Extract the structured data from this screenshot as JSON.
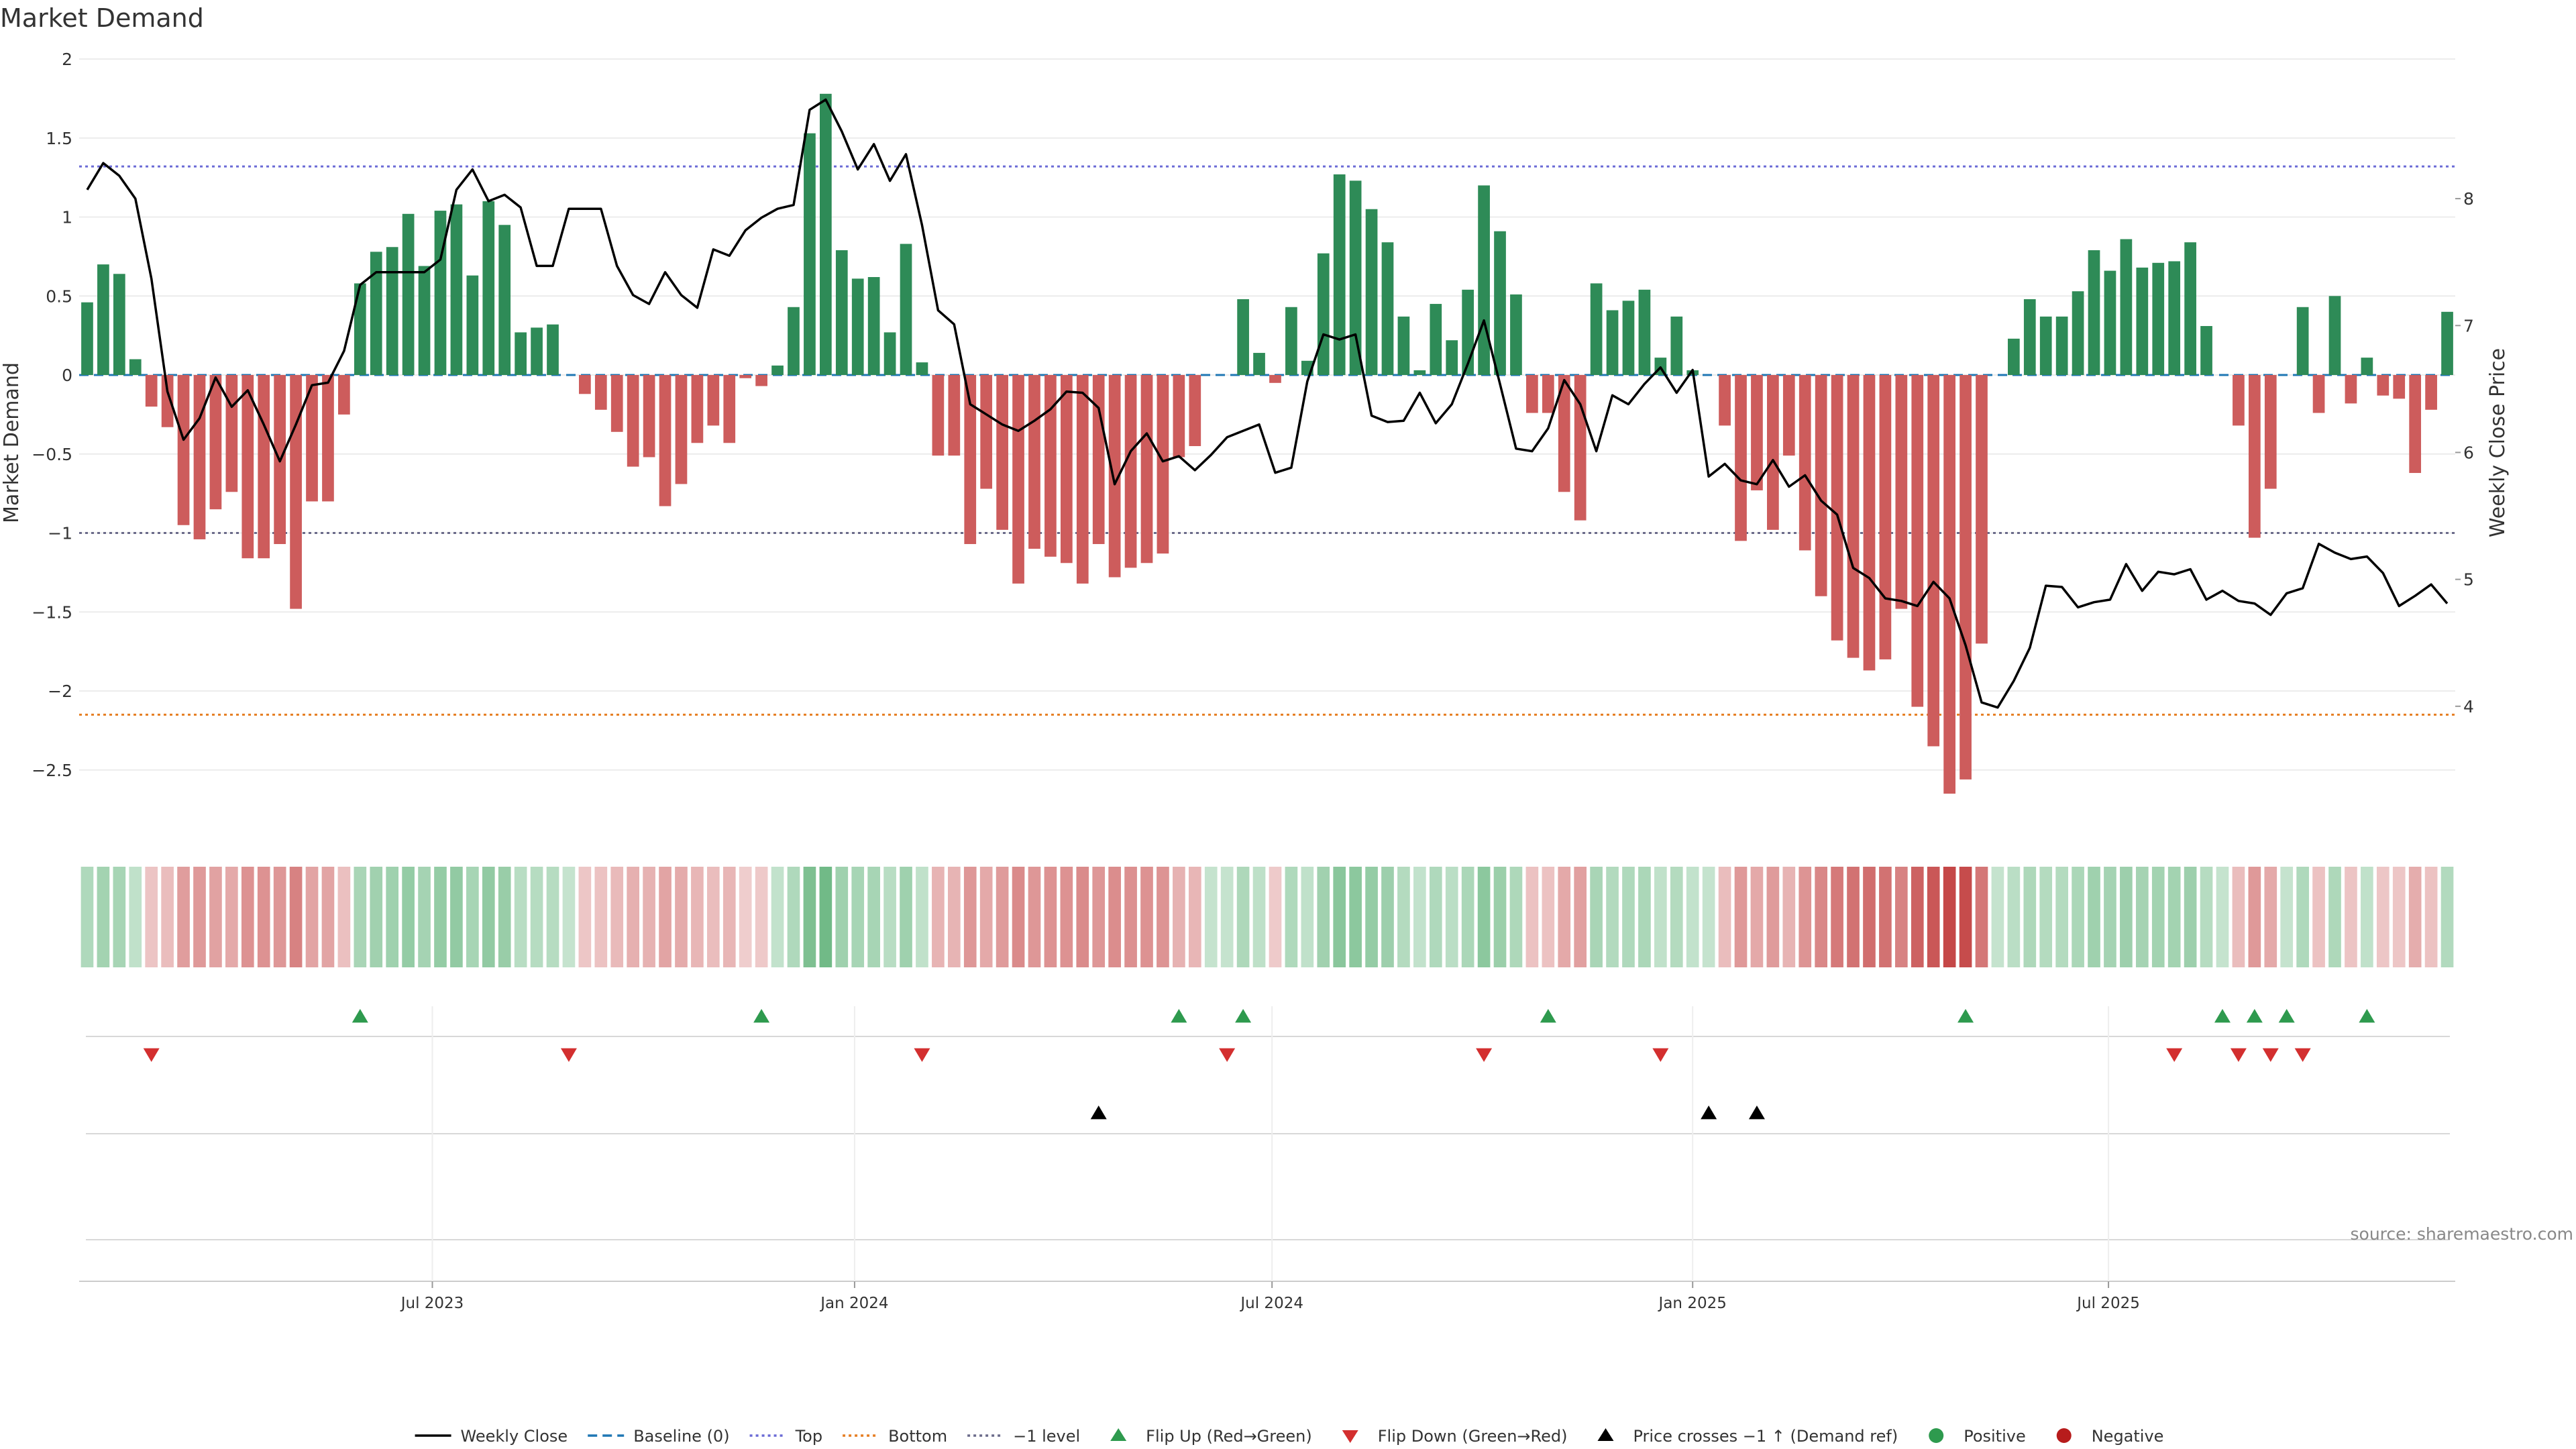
{
  "chart_data": {
    "type": "bar",
    "title": "Market Demand",
    "ylabel_left": "Market Demand",
    "ylabel_right": "Weekly Close Price",
    "source": "source: sharemaestro.com",
    "y_left_ticks": [
      2,
      1.5,
      1,
      0.5,
      0,
      -0.5,
      -1,
      -1.5,
      -2,
      -2.5
    ],
    "y_left_tick_labels": [
      "2",
      "1.5",
      "1",
      "0.5",
      "0",
      "−0.5",
      "−1",
      "−1.5",
      "−2",
      "−2.5"
    ],
    "y_left_range": [
      -2.9,
      2.0
    ],
    "y_right_ticks": [
      8,
      7,
      6,
      5,
      4
    ],
    "y_right_tick_labels": [
      "8",
      "7",
      "6",
      "5",
      "4"
    ],
    "y_right_range": [
      3.0,
      9.1
    ],
    "reference_lines": {
      "baseline": 0,
      "top": 1.32,
      "bottom": -2.15,
      "minus_one": -1
    },
    "x_ticks": [
      "Jul 2023",
      "Jan 2024",
      "Jul 2024",
      "Jan 2025",
      "Jul 2025"
    ],
    "x_tick_weeks": [
      21.5,
      47.8,
      73.8,
      100,
      125.9
    ],
    "demand": [
      0.46,
      0.7,
      0.64,
      0.1,
      -0.2,
      -0.33,
      -0.95,
      -1.04,
      -0.85,
      -0.74,
      -1.16,
      -1.16,
      -1.07,
      -1.48,
      -0.8,
      -0.8,
      -0.25,
      0.58,
      0.78,
      0.81,
      1.02,
      0.69,
      1.04,
      1.08,
      0.63,
      1.1,
      0.95,
      0.27,
      0.3,
      0.32,
      0,
      -0.12,
      -0.22,
      -0.36,
      -0.58,
      -0.52,
      -0.83,
      -0.69,
      -0.43,
      -0.32,
      -0.43,
      -0.02,
      -0.07,
      0.06,
      0.43,
      1.53,
      1.78,
      0.79,
      0.61,
      0.62,
      0.27,
      0.83,
      0.08,
      -0.51,
      -0.51,
      -1.07,
      -0.72,
      -0.98,
      -1.32,
      -1.1,
      -1.15,
      -1.19,
      -1.32,
      -1.07,
      -1.28,
      -1.22,
      -1.19,
      -1.13,
      -0.52,
      -0.45,
      0,
      0,
      0.48,
      0.14,
      -0.05,
      0.43,
      0.09,
      0.77,
      1.27,
      1.23,
      1.05,
      0.84,
      0.37,
      0.03,
      0.45,
      0.22,
      0.54,
      1.2,
      0.91,
      0.51,
      -0.24,
      -0.24,
      -0.74,
      -0.92,
      0.58,
      0.41,
      0.47,
      0.54,
      0.11,
      0.37,
      0.03,
      0,
      -0.32,
      -1.05,
      -0.73,
      -0.98,
      -0.51,
      -1.11,
      -1.4,
      -1.68,
      -1.79,
      -1.87,
      -1.8,
      -1.48,
      -2.1,
      -2.35,
      -2.65,
      -2.56,
      -1.7,
      0,
      0.23,
      0.48,
      0.37,
      0.37,
      0.53,
      0.79,
      0.66,
      0.86,
      0.68,
      0.71,
      0.72,
      0.84,
      0.31,
      0,
      -0.32,
      -1.03,
      -0.72,
      0,
      0.43,
      -0.24,
      0.5,
      -0.18,
      0.11,
      -0.13,
      -0.15,
      -0.62,
      -0.22,
      0.4
    ],
    "weekly_close": [
      8.07,
      8.28,
      8.18,
      8.0,
      7.37,
      6.48,
      6.1,
      6.27,
      6.59,
      6.36,
      6.49,
      6.22,
      5.93,
      6.22,
      6.53,
      6.55,
      6.8,
      7.32,
      7.42,
      7.42,
      7.42,
      7.42,
      7.52,
      8.07,
      8.23,
      7.98,
      8.03,
      7.93,
      7.47,
      7.47,
      7.92,
      7.92,
      7.92,
      7.47,
      7.24,
      7.17,
      7.42,
      7.24,
      7.14,
      7.6,
      7.55,
      7.75,
      7.85,
      7.92,
      7.95,
      8.7,
      8.78,
      8.53,
      8.23,
      8.43,
      8.14,
      8.35,
      7.79,
      7.12,
      7.01,
      6.38,
      6.3,
      6.22,
      6.17,
      6.25,
      6.34,
      6.48,
      6.47,
      6.35,
      5.75,
      6.01,
      6.15,
      5.93,
      5.97,
      5.86,
      5.98,
      6.12,
      6.17,
      6.22,
      5.84,
      5.88,
      6.56,
      6.93,
      6.89,
      6.93,
      6.29,
      6.24,
      6.25,
      6.47,
      6.23,
      6.38,
      6.7,
      7.04,
      6.54,
      6.03,
      6.01,
      6.19,
      6.57,
      6.38,
      6.01,
      6.45,
      6.38,
      6.54,
      6.67,
      6.47,
      6.65,
      5.81,
      5.91,
      5.78,
      5.75,
      5.94,
      5.73,
      5.82,
      5.62,
      5.51,
      5.09,
      5.01,
      4.85,
      4.83,
      4.79,
      4.98,
      4.85,
      4.48,
      4.03,
      3.99,
      4.2,
      4.46,
      4.95,
      4.94,
      4.78,
      4.82,
      4.84,
      5.12,
      4.91,
      5.06,
      5.04,
      5.08,
      4.84,
      4.91,
      4.83,
      4.81,
      4.72,
      4.89,
      4.93,
      5.28,
      5.21,
      5.16,
      5.18,
      5.05,
      4.79,
      4.87,
      4.96,
      4.81
    ],
    "flip_up_weeks": [
      17,
      42,
      68,
      72,
      91,
      117,
      133,
      135,
      137,
      142
    ],
    "flip_down_weeks": [
      4,
      30,
      52,
      71,
      87,
      98,
      130,
      134,
      136,
      138
    ],
    "price_cross_weeks": [
      63,
      101,
      104
    ],
    "legend": [
      {
        "label": "Weekly Close",
        "kind": "line-solid",
        "color": "#000000"
      },
      {
        "label": "Baseline (0)",
        "kind": "line-dash",
        "color": "#1f77b4"
      },
      {
        "label": "Top",
        "kind": "line-dot",
        "color": "#6b6bd6"
      },
      {
        "label": "Bottom",
        "kind": "line-dot",
        "color": "#e67e22"
      },
      {
        "label": "−1 level",
        "kind": "line-dot",
        "color": "#6b6b8a"
      },
      {
        "label": "Flip Up (Red→Green)",
        "kind": "tri-up",
        "color": "#2e9a4e"
      },
      {
        "label": "Flip Down (Green→Red)",
        "kind": "tri-down",
        "color": "#d32f2f"
      },
      {
        "label": "Price crosses −1 ↑ (Demand ref)",
        "kind": "tri-up",
        "color": "#000000"
      },
      {
        "label": "Positive",
        "kind": "circle",
        "color": "#2e9a4e"
      },
      {
        "label": "Negative",
        "kind": "circle",
        "color": "#b71c1c"
      }
    ],
    "colors": {
      "positive_bar": "#2e8b57",
      "negative_bar": "#cd5c5c",
      "price_line": "#000000",
      "top_line": "#6b6bd6",
      "bottom_line": "#e67e22",
      "minus_one_line": "#6b6b8a",
      "baseline": "#1f77b4"
    }
  }
}
